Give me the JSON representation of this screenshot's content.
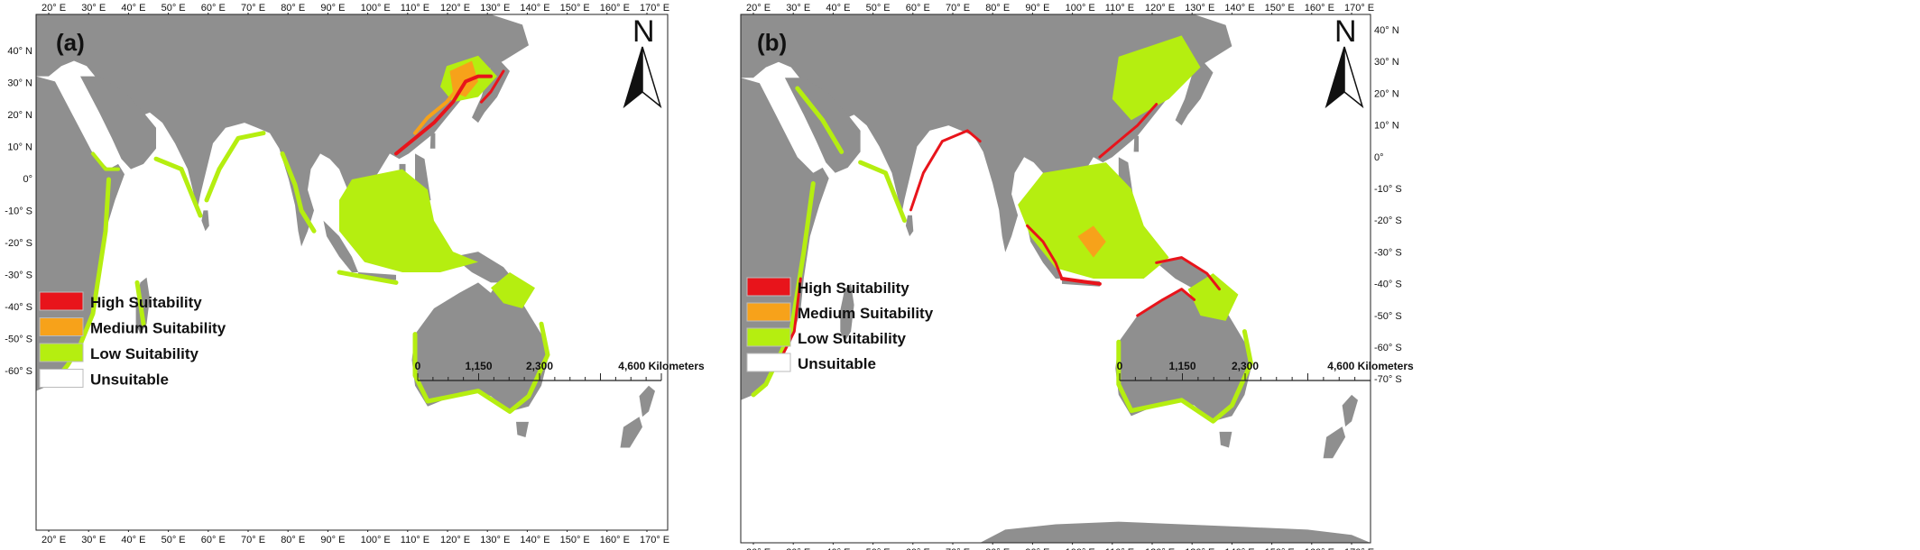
{
  "colors": {
    "high": "#e8141b",
    "medium": "#f7a21a",
    "low": "#b5ee10",
    "unsuitable": "#ffffff",
    "land": "#8f8f8f",
    "ocean": "#ffffff"
  },
  "longitude_ticks": [
    "20° E",
    "30° E",
    "40° E",
    "50° E",
    "60° E",
    "70° E",
    "80° E",
    "90° E",
    "100° E",
    "110° E",
    "120° E",
    "130° E",
    "140° E",
    "150° E",
    "160° E",
    "170° E"
  ],
  "legend": [
    {
      "label": "High Suitability",
      "color_key": "high"
    },
    {
      "label": "Medium Suitability",
      "color_key": "medium"
    },
    {
      "label": "Low Suitability",
      "color_key": "low"
    },
    {
      "label": "Unsuitable",
      "color_key": "unsuitable"
    }
  ],
  "scale_bar": {
    "ticks": [
      "0",
      "1,150",
      "2,300",
      "4,600 Kilometers"
    ]
  },
  "north_arrow": {
    "letter": "N",
    "icon": "north-arrow-icon"
  },
  "panels": [
    {
      "label": "(a)",
      "latitude_ticks": [
        "40° N",
        "30° N",
        "20° N",
        "10° N",
        "0°",
        "-10° S",
        "-20° S",
        "-30° S",
        "-40° S",
        "-50° S",
        "-60° S"
      ],
      "latitude_side": "left"
    },
    {
      "label": "(b)",
      "latitude_ticks": [
        "40° N",
        "30° N",
        "20° N",
        "10° N",
        "0°",
        "-10° S",
        "-20° S",
        "-30° S",
        "-40° S",
        "-50° S",
        "-60° S",
        "-70° S"
      ],
      "latitude_side": "right"
    }
  ]
}
